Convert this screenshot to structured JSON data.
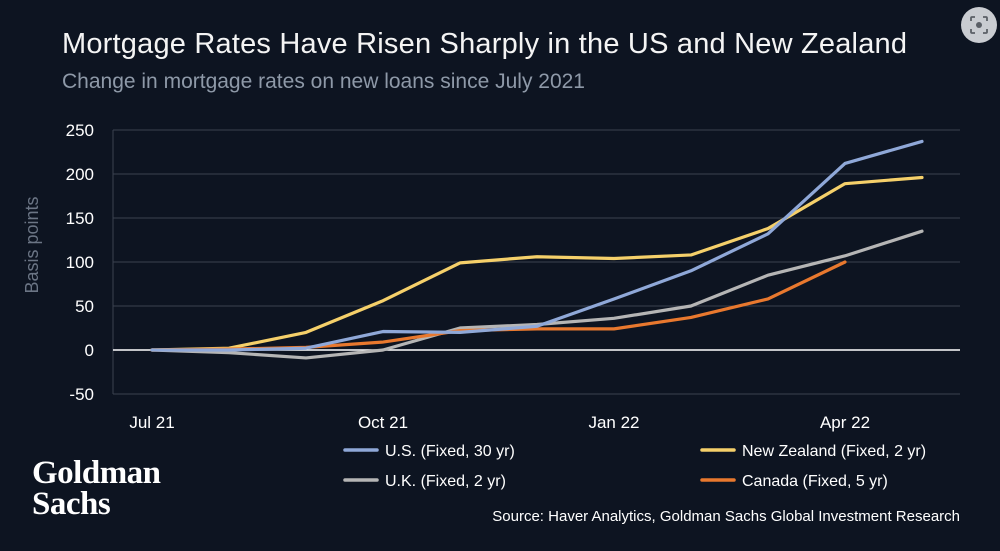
{
  "header": {
    "title": "Mortgage Rates Have Risen Sharply in the US and New Zealand",
    "subtitle": "Change in mortgage rates on new loans since July 2021"
  },
  "chart_data": {
    "type": "line",
    "title": "Mortgage Rates Have Risen Sharply in the US and New Zealand",
    "subtitle": "Change in mortgage rates on new loans since July 2021",
    "ylabel": "Basis points",
    "xlabel": "",
    "ylim": [
      -50,
      250
    ],
    "y_ticks": [
      250,
      200,
      150,
      100,
      50,
      0,
      -50
    ],
    "x_ticks": [
      "Jul 21",
      "Oct 21",
      "Jan 22",
      "Apr 22"
    ],
    "x": [
      "Jul 21",
      "Aug 21",
      "Sep 21",
      "Oct 21",
      "Nov 21",
      "Dec 21",
      "Jan 22",
      "Feb 22",
      "Mar 22",
      "Apr 22",
      "May 22"
    ],
    "grid": "horizontal",
    "legend_position": "bottom",
    "series": [
      {
        "name": "U.S. (Fixed, 30 yr)",
        "color": "#8fa8d8",
        "values": [
          0,
          0,
          2,
          21,
          20,
          27,
          58,
          90,
          132,
          212,
          237
        ]
      },
      {
        "name": "New Zealand (Fixed, 2 yr)",
        "color": "#f5d06a",
        "values": [
          0,
          2,
          20,
          56,
          99,
          106,
          104,
          108,
          138,
          189,
          196
        ]
      },
      {
        "name": "U.K. (Fixed, 2 yr)",
        "color": "#b5b5b5",
        "values": [
          0,
          -3,
          -9,
          0,
          25,
          29,
          36,
          50,
          85,
          107,
          135
        ]
      },
      {
        "name": "Canada (Fixed, 5 yr)",
        "color": "#e8782e",
        "values": [
          0,
          1,
          3,
          9,
          22,
          24,
          24,
          37,
          58,
          100,
          null
        ]
      }
    ]
  },
  "branding": {
    "logo_line1": "Goldman",
    "logo_line2": "Sachs"
  },
  "footer": {
    "source": "Source: Haver Analytics, Goldman Sachs Global Investment Research"
  },
  "colors": {
    "background": "#0d1421",
    "grid": "#ffffff"
  },
  "icons": {
    "corner_button": "image-search-icon"
  }
}
